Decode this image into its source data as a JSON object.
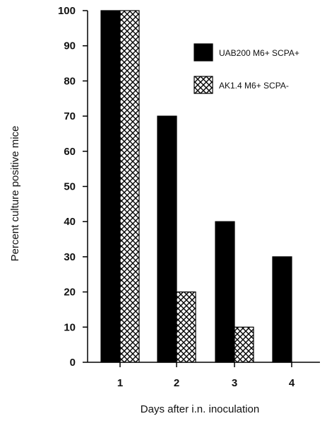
{
  "chart_data": {
    "type": "bar",
    "title": "",
    "xlabel": "Days after i.n. inoculation",
    "ylabel": "Percent culture positive mice",
    "categories": [
      "1",
      "2",
      "3",
      "4"
    ],
    "yticks": [
      "0",
      "10",
      "20",
      "30",
      "40",
      "50",
      "60",
      "70",
      "80",
      "90",
      "100"
    ],
    "ylim": [
      0,
      100
    ],
    "grid": false,
    "legend_position": "top-right",
    "series": [
      {
        "name": "UAB200 M6+ SCPA+",
        "values": [
          100,
          70,
          40,
          30
        ],
        "fill": "solid",
        "color": "#000000"
      },
      {
        "name": "AK1.4 M6+ SCPA-",
        "values": [
          100,
          20,
          10,
          0
        ],
        "fill": "crosshatch",
        "color": "#000000"
      }
    ]
  }
}
